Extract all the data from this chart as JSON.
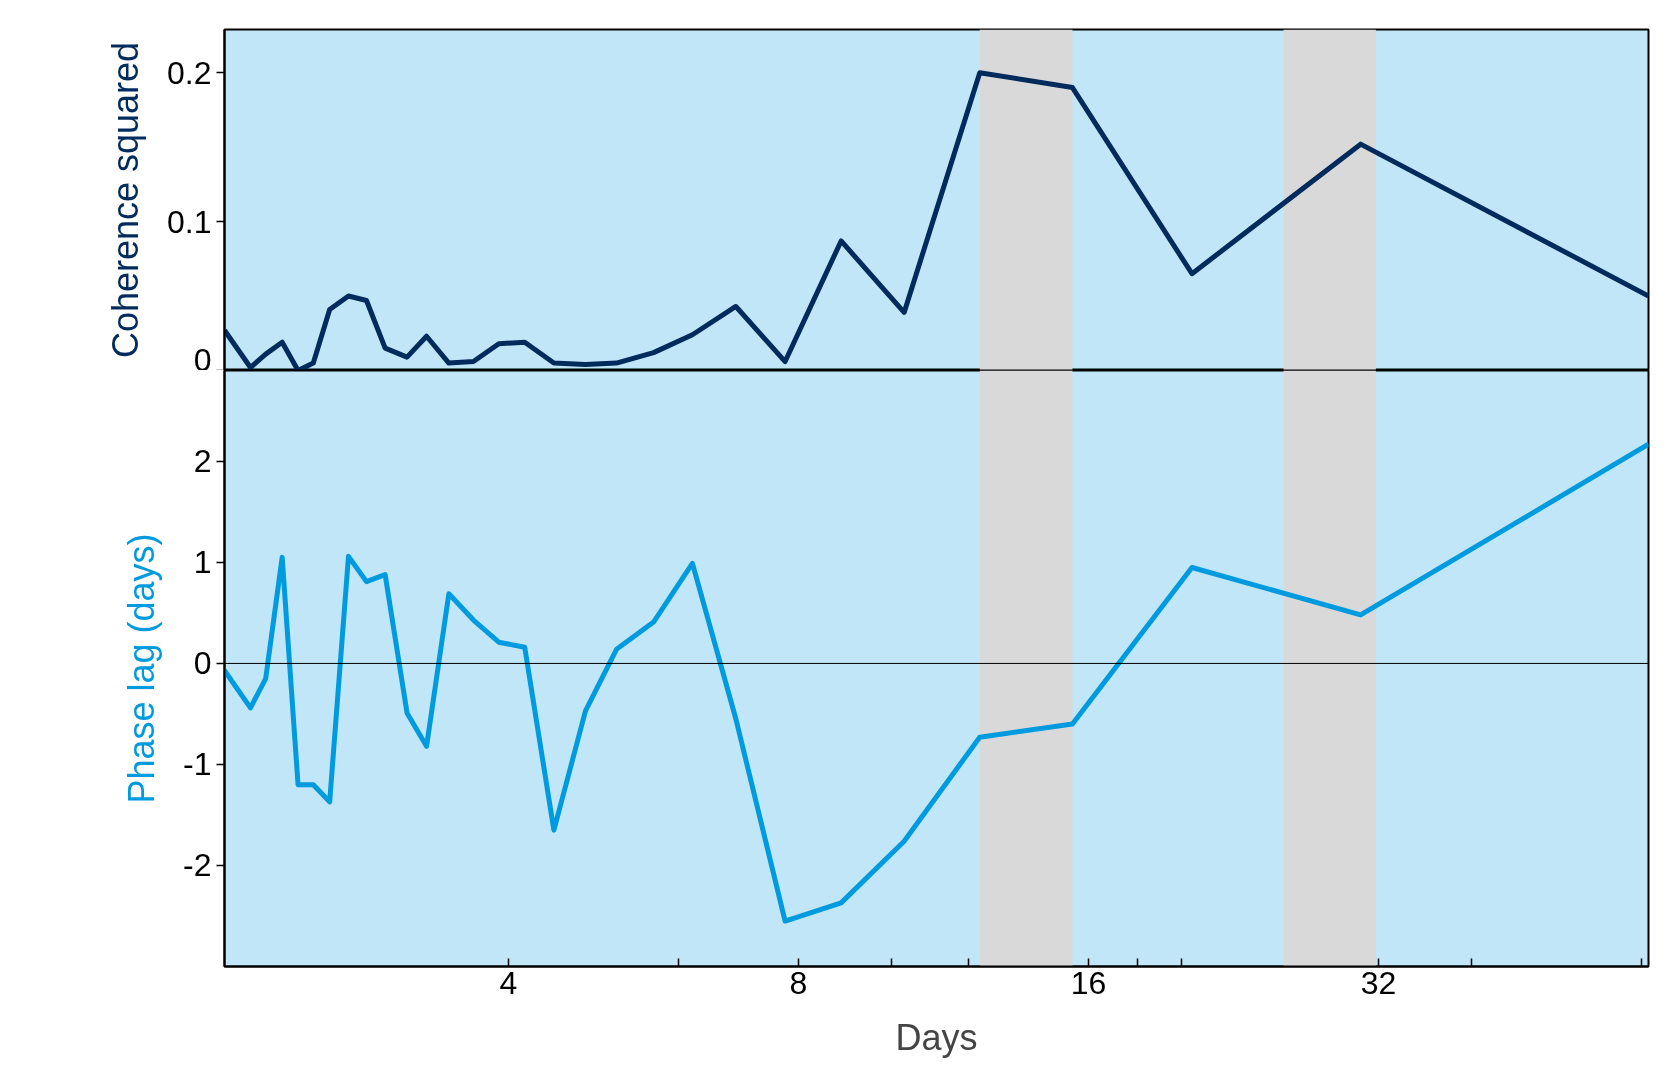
{
  "chart_data": [
    {
      "type": "line",
      "ylabel": "Coherence squared",
      "log": "x",
      "grid": false,
      "tick_labels": "y",
      "x": [
        2.03,
        2.16,
        2.24,
        2.33,
        2.42,
        2.51,
        2.61,
        2.73,
        2.85,
        2.98,
        3.14,
        3.29,
        3.47,
        3.68,
        3.91,
        4.16,
        4.46,
        4.81,
        5.18,
        5.66,
        6.21,
        6.89,
        7.75,
        8.86,
        10.3,
        12.34,
        15.4,
        20.49,
        30.66,
        61
      ],
      "series": [
        {
          "color": "#002b5c",
          "values": [
            0.027,
            0.002,
            0.011,
            0.019,
            0,
            0.005,
            0.041,
            0.05,
            0.047,
            0.015,
            0.009,
            0.023,
            0.005,
            0.006,
            0.018,
            0.019,
            0.005,
            0.004,
            0.005,
            0.012,
            0.024,
            0.043,
            0.006,
            0.087,
            0.039,
            0.2,
            0.19,
            0.065,
            0.152,
            0.05
          ]
        }
      ],
      "xlim": [
        2.03,
        61
      ],
      "ylim": [
        0,
        0.229
      ],
      "yticks": [
        0,
        0.1,
        0.2
      ],
      "bands": [
        {
          "axis": "x",
          "from": 12.34,
          "to": 15.4,
          "color": "#d9d9d9"
        },
        {
          "axis": "x",
          "from": 25.5,
          "to": 31.8,
          "color": "#d9d9d9"
        }
      ]
    },
    {
      "type": "line",
      "xlabel": "Days",
      "ylabel": "Phase lag (days)",
      "log": "x",
      "grid": false,
      "x": [
        2.03,
        2.16,
        2.24,
        2.33,
        2.42,
        2.51,
        2.61,
        2.73,
        2.85,
        2.98,
        3.14,
        3.29,
        3.47,
        3.68,
        3.91,
        4.16,
        4.46,
        4.81,
        5.18,
        5.66,
        6.21,
        6.89,
        7.75,
        8.86,
        10.3,
        12.34,
        15.4,
        20.49,
        30.66,
        61
      ],
      "series": [
        {
          "color": "#009ade",
          "values": [
            -0.07,
            -0.44,
            -0.15,
            1.05,
            -1.2,
            -1.2,
            -1.37,
            1.06,
            0.81,
            0.88,
            -0.49,
            -0.82,
            0.69,
            0.43,
            0.21,
            0.16,
            -1.65,
            -0.47,
            0.14,
            0.41,
            0.99,
            -0.55,
            -2.55,
            -2.37,
            -1.76,
            -0.73,
            -0.6,
            0.95,
            0.48,
            2.17
          ]
        }
      ],
      "xlim": [
        2.03,
        61
      ],
      "xticks": [
        4,
        {
          "value": 6,
          "label": null
        },
        8,
        {
          "value": 10,
          "label": null
        },
        {
          "value": 12,
          "label": null
        },
        16,
        {
          "value": 18,
          "label": null
        },
        {
          "value": 20,
          "label": null
        },
        32,
        {
          "value": 40,
          "label": null
        },
        {
          "value": 60,
          "label": null
        }
      ],
      "ylim": [
        -3.0,
        2.9
      ],
      "yticks": [
        -2,
        -1,
        0,
        1,
        2
      ],
      "ref_lines": [
        {
          "axis": "y",
          "value": 0,
          "color": "#000000"
        }
      ],
      "bands": [
        {
          "axis": "x",
          "from": 12.34,
          "to": 15.4,
          "color": "#d9d9d9"
        },
        {
          "axis": "x",
          "from": 25.5,
          "to": 31.8,
          "color": "#d9d9d9"
        }
      ]
    }
  ]
}
